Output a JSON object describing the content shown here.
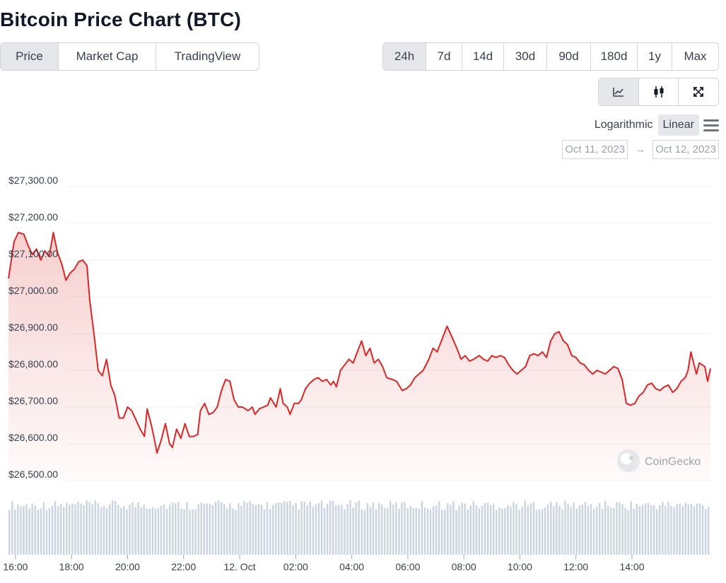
{
  "page": {
    "title": "Bitcoin Price Chart (BTC)"
  },
  "tabs": [
    {
      "label": "Price",
      "active": true
    },
    {
      "label": "Market Cap",
      "active": false
    },
    {
      "label": "TradingView",
      "active": false
    }
  ],
  "ranges": [
    {
      "label": "24h",
      "active": true
    },
    {
      "label": "7d",
      "active": false
    },
    {
      "label": "14d",
      "active": false
    },
    {
      "label": "30d",
      "active": false
    },
    {
      "label": "90d",
      "active": false
    },
    {
      "label": "180d",
      "active": false
    },
    {
      "label": "1y",
      "active": false
    },
    {
      "label": "Max",
      "active": false
    }
  ],
  "chart_views": [
    {
      "icon": "line-chart-icon",
      "active": true
    },
    {
      "icon": "candlestick-icon",
      "active": false
    },
    {
      "icon": "expand-icon",
      "active": false
    }
  ],
  "scale": {
    "logarithmic": "Logarithmic",
    "linear": "Linear",
    "active": "Linear",
    "menu_icon": "hamburger-menu-icon"
  },
  "date_range": {
    "from": "Oct 11, 2023",
    "arrow": "→",
    "to": "Oct 12, 2023"
  },
  "watermark": "CoinGecko",
  "colors": {
    "line": "#dc2626",
    "volume": "#cbd5e1",
    "grid": "#f1f1f1",
    "active_button": "#e5e7eb"
  },
  "chart_data": {
    "type": "area",
    "title": "",
    "ylabel": "",
    "xlabel": "",
    "ylim": [
      26500,
      27300
    ],
    "yticks": [
      27300,
      27200,
      27100,
      27000,
      26900,
      26800,
      26700,
      26600,
      26500
    ],
    "ytick_labels": [
      "$27,300.00",
      "$27,200.00",
      "$27,100.00",
      "$27,000.00",
      "$26,900.00",
      "$26,800.00",
      "$26,700.00",
      "$26,600.00",
      "$26,500.00"
    ],
    "xlim": [
      15.75,
      39.75
    ],
    "xticks": [
      16,
      18,
      20,
      22,
      24,
      26,
      28,
      30,
      32,
      34,
      36,
      38
    ],
    "xtick_labels": [
      "16:00",
      "18:00",
      "20:00",
      "22:00",
      "12. Oct",
      "02:00",
      "04:00",
      "06:00",
      "08:00",
      "10:00",
      "12:00",
      "14:00"
    ],
    "grid": true,
    "legend": "none",
    "series": [
      {
        "color": "#dc2626",
        "points": [
          [
            15.75,
            27050
          ],
          [
            15.95,
            27150
          ],
          [
            16.1,
            27175
          ],
          [
            16.3,
            27170
          ],
          [
            16.45,
            27140
          ],
          [
            16.6,
            27115
          ],
          [
            16.75,
            27130
          ],
          [
            16.9,
            27100
          ],
          [
            17.05,
            27125
          ],
          [
            17.2,
            27110
          ],
          [
            17.35,
            27175
          ],
          [
            17.5,
            27120
          ],
          [
            17.65,
            27090
          ],
          [
            17.8,
            27045
          ],
          [
            17.95,
            27065
          ],
          [
            18.1,
            27075
          ],
          [
            18.25,
            27095
          ],
          [
            18.4,
            27100
          ],
          [
            18.55,
            27085
          ],
          [
            18.65,
            26990
          ],
          [
            18.8,
            26900
          ],
          [
            18.95,
            26800
          ],
          [
            19.1,
            26785
          ],
          [
            19.25,
            26830
          ],
          [
            19.4,
            26760
          ],
          [
            19.55,
            26730
          ],
          [
            19.7,
            26670
          ],
          [
            19.85,
            26670
          ],
          [
            20.0,
            26700
          ],
          [
            20.15,
            26690
          ],
          [
            20.3,
            26665
          ],
          [
            20.45,
            26640
          ],
          [
            20.6,
            26620
          ],
          [
            20.7,
            26695
          ],
          [
            20.85,
            26650
          ],
          [
            20.95,
            26615
          ],
          [
            21.05,
            26575
          ],
          [
            21.2,
            26610
          ],
          [
            21.35,
            26655
          ],
          [
            21.5,
            26600
          ],
          [
            21.6,
            26590
          ],
          [
            21.75,
            26640
          ],
          [
            21.9,
            26615
          ],
          [
            22.05,
            26655
          ],
          [
            22.2,
            26620
          ],
          [
            22.35,
            26620
          ],
          [
            22.5,
            26625
          ],
          [
            22.6,
            26690
          ],
          [
            22.75,
            26710
          ],
          [
            22.9,
            26680
          ],
          [
            23.05,
            26685
          ],
          [
            23.2,
            26700
          ],
          [
            23.35,
            26745
          ],
          [
            23.5,
            26775
          ],
          [
            23.65,
            26770
          ],
          [
            23.8,
            26720
          ],
          [
            23.95,
            26700
          ],
          [
            24.1,
            26700
          ],
          [
            24.3,
            26690
          ],
          [
            24.45,
            26700
          ],
          [
            24.55,
            26680
          ],
          [
            24.7,
            26695
          ],
          [
            24.85,
            26700
          ],
          [
            25.0,
            26705
          ],
          [
            25.1,
            26725
          ],
          [
            25.3,
            26700
          ],
          [
            25.45,
            26750
          ],
          [
            25.55,
            26710
          ],
          [
            25.7,
            26700
          ],
          [
            25.8,
            26680
          ],
          [
            25.95,
            26710
          ],
          [
            26.1,
            26710
          ],
          [
            26.2,
            26720
          ],
          [
            26.35,
            26750
          ],
          [
            26.5,
            26765
          ],
          [
            26.65,
            26775
          ],
          [
            26.8,
            26780
          ],
          [
            26.95,
            26770
          ],
          [
            27.1,
            26775
          ],
          [
            27.25,
            26760
          ],
          [
            27.35,
            26770
          ],
          [
            27.45,
            26755
          ],
          [
            27.6,
            26800
          ],
          [
            27.75,
            26815
          ],
          [
            27.9,
            26830
          ],
          [
            28.05,
            26820
          ],
          [
            28.2,
            26850
          ],
          [
            28.35,
            26880
          ],
          [
            28.5,
            26840
          ],
          [
            28.65,
            26860
          ],
          [
            28.8,
            26820
          ],
          [
            28.95,
            26830
          ],
          [
            29.1,
            26810
          ],
          [
            29.25,
            26780
          ],
          [
            29.45,
            26775
          ],
          [
            29.6,
            26770
          ],
          [
            29.8,
            26745
          ],
          [
            29.95,
            26750
          ],
          [
            30.1,
            26760
          ],
          [
            30.25,
            26780
          ],
          [
            30.4,
            26790
          ],
          [
            30.55,
            26800
          ],
          [
            30.75,
            26830
          ],
          [
            30.9,
            26860
          ],
          [
            31.05,
            26850
          ],
          [
            31.2,
            26880
          ],
          [
            31.4,
            26920
          ],
          [
            31.55,
            26895
          ],
          [
            31.75,
            26860
          ],
          [
            31.9,
            26830
          ],
          [
            32.05,
            26840
          ],
          [
            32.2,
            26825
          ],
          [
            32.35,
            26830
          ],
          [
            32.55,
            26840
          ],
          [
            32.7,
            26830
          ],
          [
            32.85,
            26825
          ],
          [
            33.0,
            26840
          ],
          [
            33.15,
            26835
          ],
          [
            33.3,
            26840
          ],
          [
            33.45,
            26835
          ],
          [
            33.6,
            26815
          ],
          [
            33.75,
            26800
          ],
          [
            33.9,
            26790
          ],
          [
            34.05,
            26800
          ],
          [
            34.2,
            26810
          ],
          [
            34.35,
            26840
          ],
          [
            34.5,
            26845
          ],
          [
            34.65,
            26840
          ],
          [
            34.8,
            26850
          ],
          [
            34.95,
            26835
          ],
          [
            35.1,
            26880
          ],
          [
            35.25,
            26900
          ],
          [
            35.4,
            26905
          ],
          [
            35.55,
            26880
          ],
          [
            35.7,
            26870
          ],
          [
            35.85,
            26840
          ],
          [
            36.0,
            26835
          ],
          [
            36.15,
            26820
          ],
          [
            36.3,
            26815
          ],
          [
            36.45,
            26800
          ],
          [
            36.6,
            26790
          ],
          [
            36.75,
            26800
          ],
          [
            36.9,
            26795
          ],
          [
            37.05,
            26790
          ],
          [
            37.2,
            26800
          ],
          [
            37.35,
            26810
          ],
          [
            37.5,
            26805
          ],
          [
            37.65,
            26775
          ],
          [
            37.8,
            26710
          ],
          [
            37.95,
            26705
          ],
          [
            38.1,
            26710
          ],
          [
            38.25,
            26730
          ],
          [
            38.4,
            26740
          ],
          [
            38.55,
            26760
          ],
          [
            38.7,
            26765
          ],
          [
            38.85,
            26750
          ],
          [
            39.0,
            26745
          ],
          [
            39.15,
            26755
          ],
          [
            39.3,
            26760
          ],
          [
            39.45,
            26740
          ],
          [
            39.6,
            26750
          ],
          [
            39.75,
            26770
          ],
          [
            39.9,
            26780
          ],
          [
            40.0,
            26800
          ],
          [
            40.1,
            26850
          ],
          [
            40.2,
            26820
          ],
          [
            40.3,
            26790
          ],
          [
            40.4,
            26820
          ],
          [
            40.5,
            26815
          ],
          [
            40.6,
            26810
          ],
          [
            40.7,
            26770
          ],
          [
            40.8,
            26805
          ]
        ]
      }
    ],
    "volume_bars": 245
  }
}
